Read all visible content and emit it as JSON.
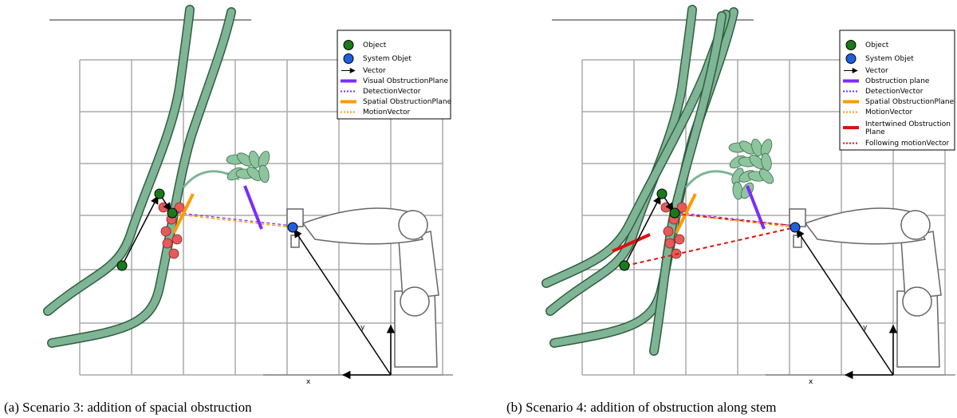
{
  "panels": [
    {
      "caption": "(a) Scenario 3: addition of spacial obstruction",
      "axis_x": "x",
      "axis_y": "y",
      "legend": [
        "Object",
        "System Objet",
        "Vector",
        "Visual ObstructionPlane",
        "DetectionVector",
        "Spatial ObstructionPlane",
        "MotionVector"
      ]
    },
    {
      "caption": "(b) Scenario 4: addition of obstruction along stem",
      "axis_x": "x",
      "axis_y": "y",
      "legend": [
        "Object",
        "System Objet",
        "Vector",
        "Obstruction plane",
        "DetectionVector",
        "Spatial ObstructionPlane",
        "MotionVector",
        "Intertwined Obstruction Plane",
        "Following motionVector"
      ]
    }
  ]
}
